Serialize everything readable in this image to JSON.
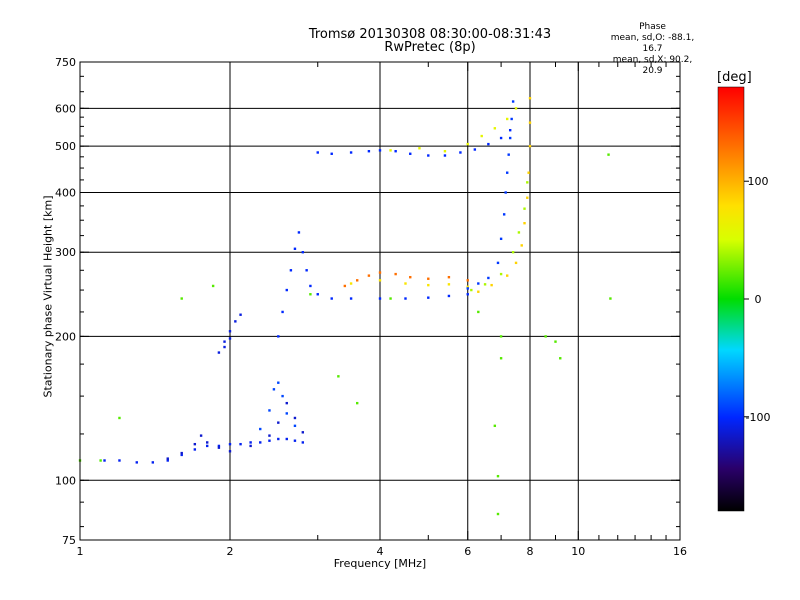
{
  "chart_data": {
    "type": "scatter",
    "title": "Tromsø 20130308 08:30:00-08:31:43",
    "subtitle": "RwPretec (8p)",
    "xlabel": "Frequency [MHz]",
    "ylabel": "Stationary phase Virtual Height [km]",
    "x_scale": "log",
    "y_scale": "log",
    "xlim": [
      1,
      16
    ],
    "ylim": [
      75,
      750
    ],
    "x_ticks": [
      1,
      2,
      4,
      6,
      8,
      10,
      16
    ],
    "y_ticks": [
      75,
      100,
      200,
      300,
      400,
      500,
      600,
      750
    ],
    "grid": true,
    "colorbar": {
      "label": "[deg]",
      "min": -180,
      "max": 180,
      "ticks": [
        100,
        0,
        -100
      ]
    },
    "stats": {
      "heading": "Phase",
      "o_line": "mean, sd,O: -88.1, 16.7",
      "x_line": "mean, sd,X:  90.2, 20.9"
    },
    "traces": [
      {
        "points": [
          [
            1.12,
            110
          ],
          [
            1.2,
            110
          ],
          [
            1.3,
            109
          ],
          [
            1.4,
            109
          ],
          [
            1.5,
            110
          ],
          [
            1.6,
            113
          ],
          [
            1.7,
            116
          ],
          [
            1.8,
            118
          ],
          [
            1.9,
            118
          ],
          [
            2.0,
            119
          ],
          [
            2.1,
            119
          ],
          [
            2.2,
            120
          ],
          [
            2.3,
            120
          ],
          [
            2.4,
            121
          ],
          [
            2.5,
            122
          ],
          [
            2.6,
            122
          ],
          [
            2.7,
            121
          ],
          [
            2.8,
            120
          ]
        ],
        "phase": -105
      },
      {
        "points": [
          [
            1.5,
            111
          ],
          [
            1.6,
            114
          ],
          [
            1.7,
            119
          ],
          [
            1.75,
            124
          ],
          [
            1.8,
            120
          ],
          [
            1.9,
            117
          ],
          [
            2.0,
            115
          ],
          [
            2.2,
            118
          ],
          [
            2.4,
            124
          ],
          [
            2.5,
            132
          ],
          [
            2.6,
            145
          ],
          [
            2.7,
            135
          ],
          [
            2.8,
            126
          ]
        ],
        "phase": -115
      },
      {
        "points": [
          [
            2.3,
            128
          ],
          [
            2.4,
            140
          ],
          [
            2.45,
            155
          ],
          [
            2.5,
            160
          ],
          [
            2.55,
            150
          ],
          [
            2.6,
            138
          ],
          [
            2.7,
            130
          ]
        ],
        "phase": -90
      },
      {
        "points": [
          [
            1.9,
            185
          ],
          [
            1.95,
            195
          ],
          [
            2.0,
            205
          ],
          [
            2.05,
            215
          ],
          [
            2.1,
            222
          ],
          [
            2.0,
            198
          ],
          [
            1.95,
            190
          ]
        ],
        "phase": -110
      },
      {
        "points": [
          [
            2.5,
            200
          ],
          [
            2.55,
            225
          ],
          [
            2.6,
            250
          ],
          [
            2.65,
            275
          ],
          [
            2.7,
            305
          ],
          [
            2.75,
            330
          ],
          [
            2.8,
            300
          ],
          [
            2.85,
            275
          ],
          [
            2.9,
            255
          ],
          [
            3.0,
            245
          ],
          [
            3.2,
            240
          ],
          [
            3.5,
            240
          ],
          [
            4.0,
            240
          ],
          [
            4.5,
            240
          ],
          [
            5.0,
            241
          ],
          [
            5.5,
            243
          ],
          [
            6.0,
            245
          ]
        ],
        "phase": -100
      },
      {
        "points": [
          [
            3.4,
            255
          ],
          [
            3.6,
            262
          ],
          [
            3.8,
            268
          ],
          [
            4.0,
            272
          ],
          [
            4.3,
            270
          ],
          [
            4.6,
            266
          ],
          [
            5.0,
            264
          ],
          [
            5.5,
            266
          ],
          [
            6.0,
            262
          ]
        ],
        "phase": 130
      },
      {
        "points": [
          [
            3.5,
            258
          ],
          [
            4.0,
            262
          ],
          [
            4.5,
            258
          ],
          [
            5.0,
            256
          ],
          [
            5.5,
            257
          ],
          [
            6.0,
            254
          ]
        ],
        "phase": 75
      },
      {
        "points": [
          [
            6.0,
            252
          ],
          [
            6.3,
            258
          ],
          [
            6.6,
            265
          ],
          [
            6.9,
            285
          ],
          [
            7.0,
            320
          ],
          [
            7.1,
            360
          ],
          [
            7.15,
            400
          ],
          [
            7.2,
            440
          ],
          [
            7.25,
            480
          ],
          [
            7.3,
            520
          ],
          [
            7.35,
            570
          ],
          [
            7.4,
            620
          ]
        ],
        "phase": -95
      },
      {
        "points": [
          [
            6.3,
            248
          ],
          [
            6.7,
            256
          ],
          [
            7.2,
            268
          ],
          [
            7.5,
            285
          ],
          [
            7.7,
            310
          ],
          [
            7.8,
            345
          ],
          [
            7.9,
            390
          ],
          [
            7.95,
            440
          ],
          [
            8.0,
            500
          ],
          [
            8.0,
            560
          ],
          [
            8.0,
            630
          ]
        ],
        "phase": 85
      },
      {
        "points": [
          [
            6.1,
            250
          ],
          [
            6.5,
            257
          ],
          [
            7.0,
            270
          ],
          [
            7.4,
            300
          ],
          [
            7.6,
            330
          ],
          [
            7.8,
            370
          ],
          [
            7.9,
            420
          ]
        ],
        "phase": 40
      },
      {
        "points": [
          [
            3.0,
            485
          ],
          [
            3.2,
            482
          ],
          [
            3.5,
            485
          ],
          [
            3.8,
            488
          ],
          [
            4.0,
            490
          ],
          [
            4.3,
            488
          ],
          [
            4.6,
            482
          ],
          [
            5.0,
            478
          ],
          [
            5.4,
            478
          ],
          [
            5.8,
            485
          ],
          [
            6.2,
            492
          ],
          [
            6.6,
            505
          ],
          [
            7.0,
            520
          ],
          [
            7.3,
            540
          ]
        ],
        "phase": -100
      },
      {
        "points": [
          [
            4.2,
            490
          ],
          [
            4.8,
            495
          ],
          [
            5.4,
            488
          ],
          [
            6.0,
            505
          ],
          [
            6.4,
            525
          ],
          [
            6.8,
            545
          ],
          [
            7.2,
            570
          ],
          [
            7.5,
            600
          ]
        ],
        "phase": 60
      },
      {
        "points": [
          [
            1.6,
            240
          ],
          [
            1.85,
            255
          ],
          [
            2.9,
            245
          ],
          [
            3.3,
            165
          ],
          [
            3.6,
            145
          ],
          [
            4.2,
            240
          ],
          [
            6.9,
            102
          ],
          [
            6.9,
            85
          ],
          [
            7.0,
            180
          ],
          [
            7.0,
            200
          ],
          [
            8.6,
            200
          ],
          [
            9.0,
            195
          ],
          [
            9.2,
            180
          ],
          [
            11.5,
            480
          ],
          [
            11.6,
            240
          ],
          [
            1.0,
            110
          ],
          [
            1.1,
            110
          ],
          [
            1.2,
            135
          ],
          [
            6.8,
            130
          ],
          [
            6.3,
            225
          ]
        ],
        "phase": 20
      }
    ]
  }
}
